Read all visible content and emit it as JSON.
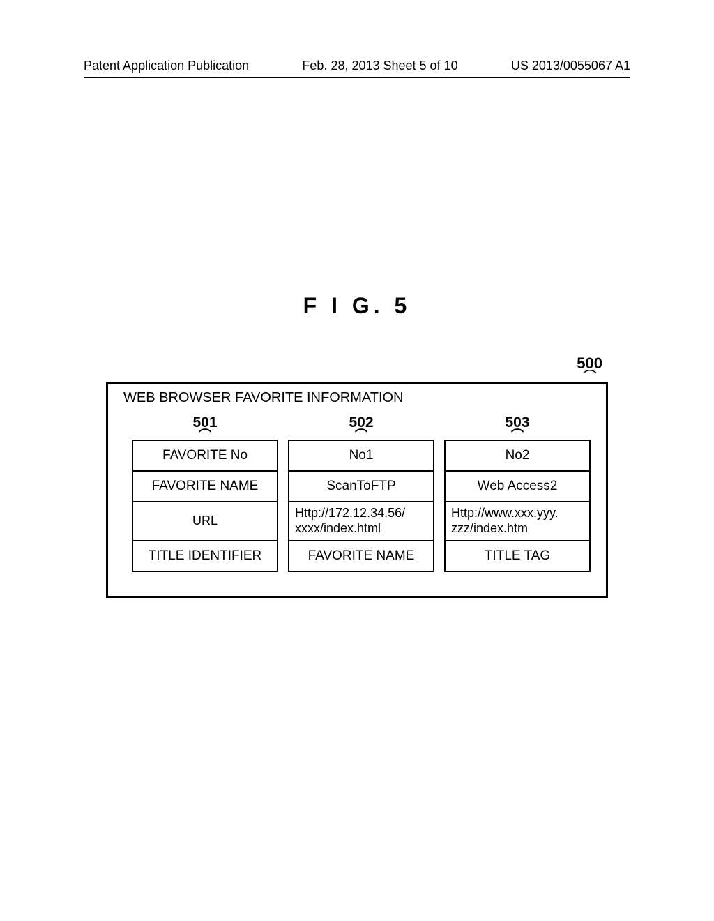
{
  "header": {
    "left": "Patent Application Publication",
    "center": "Feb. 28, 2013  Sheet 5 of 10",
    "right": "US 2013/0055067 A1"
  },
  "figure_label": "F I G.  5",
  "main_ref": "500",
  "inner_title": "WEB BROWSER FAVORITE INFORMATION",
  "col_refs": {
    "c1": "501",
    "c2": "502",
    "c3": "503"
  },
  "tick": "⌒",
  "rows": {
    "labels": [
      "FAVORITE No",
      "FAVORITE NAME",
      "URL",
      "TITLE IDENTIFIER"
    ],
    "col2": [
      "No1",
      "ScanToFTP",
      "Http://172.12.34.56/ xxxx/index.html",
      "FAVORITE NAME"
    ],
    "col3": [
      "No2",
      "Web Access2",
      "Http://www.xxx.yyy. zzz/index.htm",
      "TITLE TAG"
    ]
  }
}
